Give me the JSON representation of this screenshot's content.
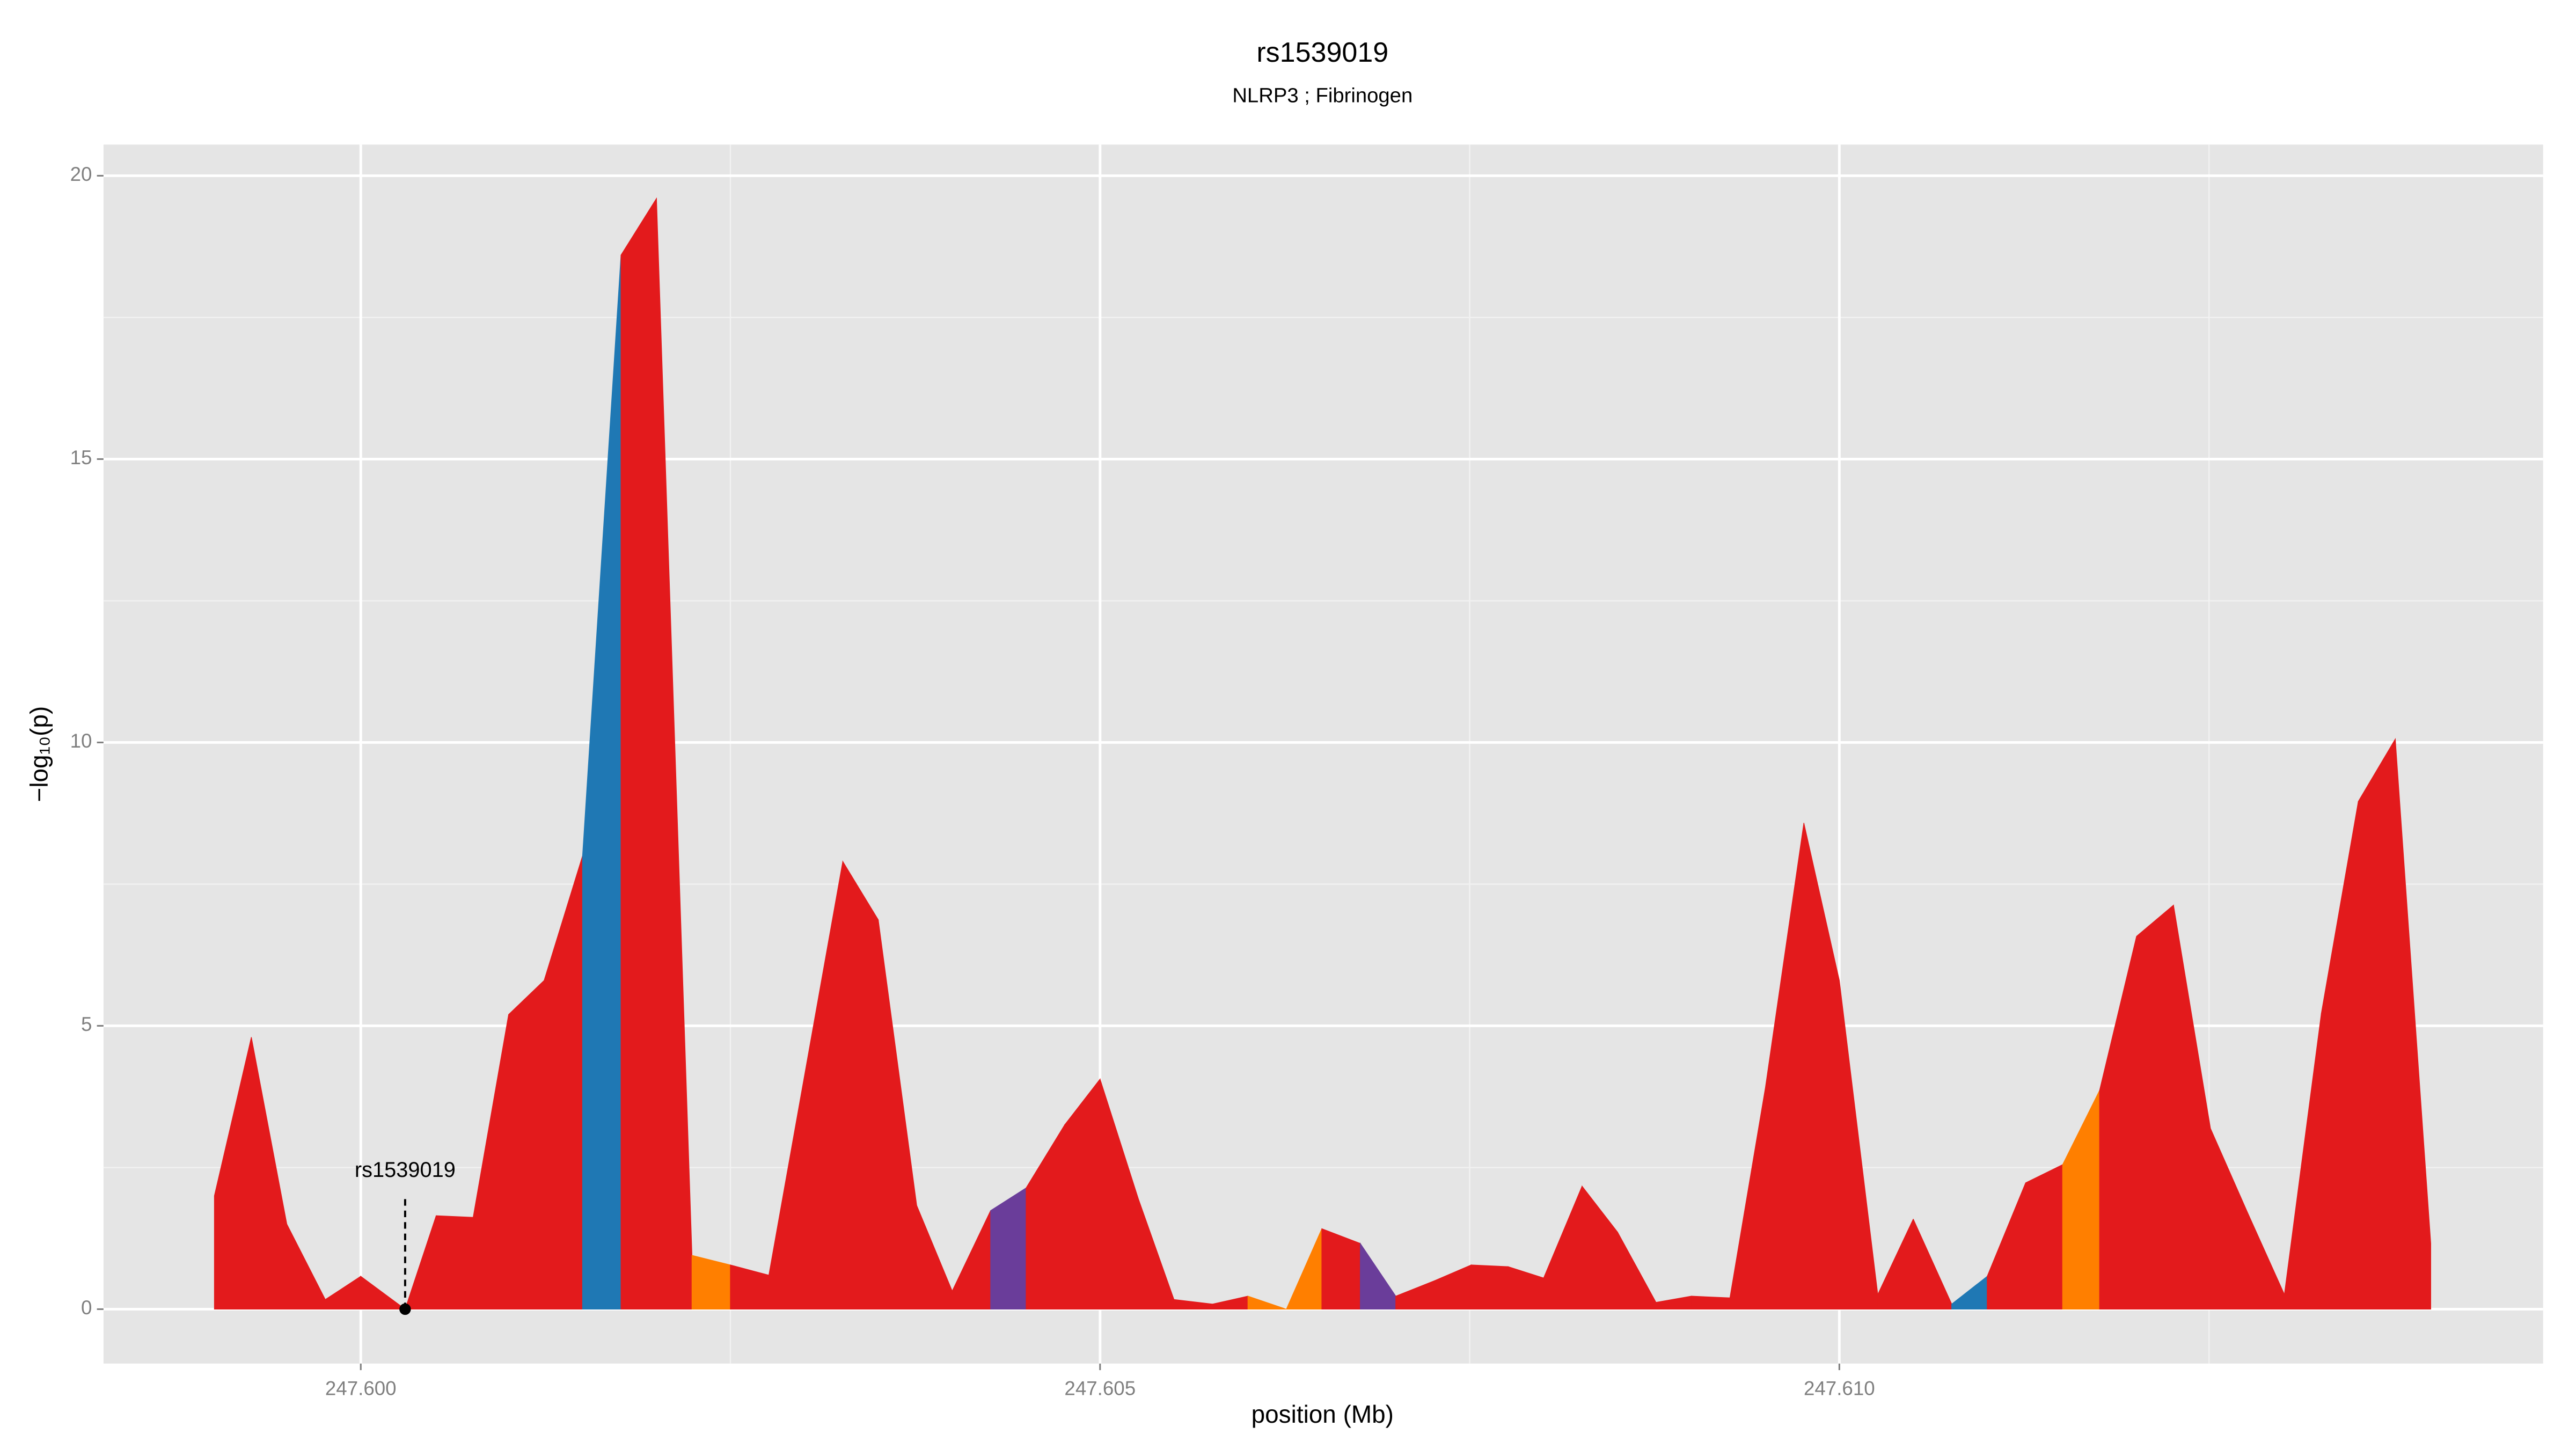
{
  "chart_data": {
    "type": "area",
    "title": "rs1539019",
    "subtitle": "NLRP3 ; Fibrinogen",
    "x_label": "position (Mb)",
    "y_label": "−log₁₀(p)",
    "x": [
      247.59901,
      247.59926,
      247.5995,
      247.59976,
      247.6,
      247.6003,
      247.60051,
      247.60076,
      247.601,
      247.60124,
      247.6015,
      247.60176,
      247.602,
      247.60224,
      247.6025,
      247.60276,
      247.60326,
      247.6035,
      247.60376,
      247.604,
      247.60426,
      247.6045,
      247.60476,
      247.605,
      247.60526,
      247.6055,
      247.60576,
      247.606,
      247.60626,
      247.6065,
      247.60676,
      247.607,
      247.60726,
      247.60751,
      247.60776,
      247.608,
      247.60826,
      247.6085,
      247.60876,
      247.609,
      247.60926,
      247.6095,
      247.60976,
      247.61,
      247.61026,
      247.6105,
      247.61076,
      247.611,
      247.61126,
      247.61151,
      247.61176,
      247.61201,
      247.61226,
      247.61251,
      247.61276,
      247.61301,
      247.61326,
      247.61351,
      247.61376,
      247.614
    ],
    "values": [
      2.0,
      4.8,
      1.5,
      0.17,
      0.58,
      0,
      1.65,
      1.62,
      5.2,
      5.8,
      8.0,
      18.6,
      19.6,
      0.95,
      0.78,
      0.6,
      7.9,
      6.87,
      1.83,
      0.32,
      1.74,
      2.14,
      3.25,
      4.06,
      1.94,
      0.17,
      0.09,
      0.23,
      0,
      1.42,
      1.16,
      0.23,
      0.5,
      0.78,
      0.75,
      0.55,
      2.17,
      1.36,
      0.12,
      0.23,
      0.2,
      3.91,
      8.58,
      5.8,
      0.26,
      1.59,
      0.09,
      0.58,
      2.23,
      2.55,
      3.86,
      6.58,
      7.13,
      3.19,
      1.71,
      0.26,
      5.22,
      8.96,
      10.06,
      1.16
    ],
    "segment_colors": [
      "#e31a1c",
      "#e31a1c",
      "#e31a1c",
      "#e31a1c",
      "#e31a1c",
      "#e31a1c",
      "#e31a1c",
      "#e31a1c",
      "#e31a1c",
      "#e31a1c",
      "#1f78b4",
      "#e31a1c",
      "#e31a1c",
      "#ff7f00",
      "#e31a1c",
      "#e31a1c",
      "#e31a1c",
      "#e31a1c",
      "#e31a1c",
      "#e31a1c",
      "#6a3d9a",
      "#e31a1c",
      "#e31a1c",
      "#e31a1c",
      "#e31a1c",
      "#e31a1c",
      "#e31a1c",
      "#ff7f00",
      "#ff7f00",
      "#e31a1c",
      "#6a3d9a",
      "#e31a1c",
      "#e31a1c",
      "#e31a1c",
      "#e31a1c",
      "#e31a1c",
      "#e31a1c",
      "#e31a1c",
      "#e31a1c",
      "#e31a1c",
      "#e31a1c",
      "#e31a1c",
      "#e31a1c",
      "#e31a1c",
      "#e31a1c",
      "#e31a1c",
      "#1f78b4",
      "#e31a1c",
      "#e31a1c",
      "#ff7f00",
      "#e31a1c",
      "#e31a1c",
      "#e31a1c",
      "#e31a1c",
      "#e31a1c",
      "#e31a1c",
      "#e31a1c",
      "#e31a1c",
      "#e31a1c"
    ],
    "annotation": {
      "text": "rs1539019",
      "x": 247.6003,
      "y": 0
    },
    "xlim": [
      247.59826,
      247.61476
    ],
    "ylim": [
      -0.96,
      20.55
    ],
    "xticks": [
      {
        "value": 247.6,
        "label": "247.600"
      },
      {
        "value": 247.605,
        "label": "247.605"
      },
      {
        "value": 247.61,
        "label": "247.610"
      }
    ],
    "yticks": [
      0,
      5,
      10,
      15,
      20
    ],
    "grid": true,
    "minor_grid": true
  }
}
